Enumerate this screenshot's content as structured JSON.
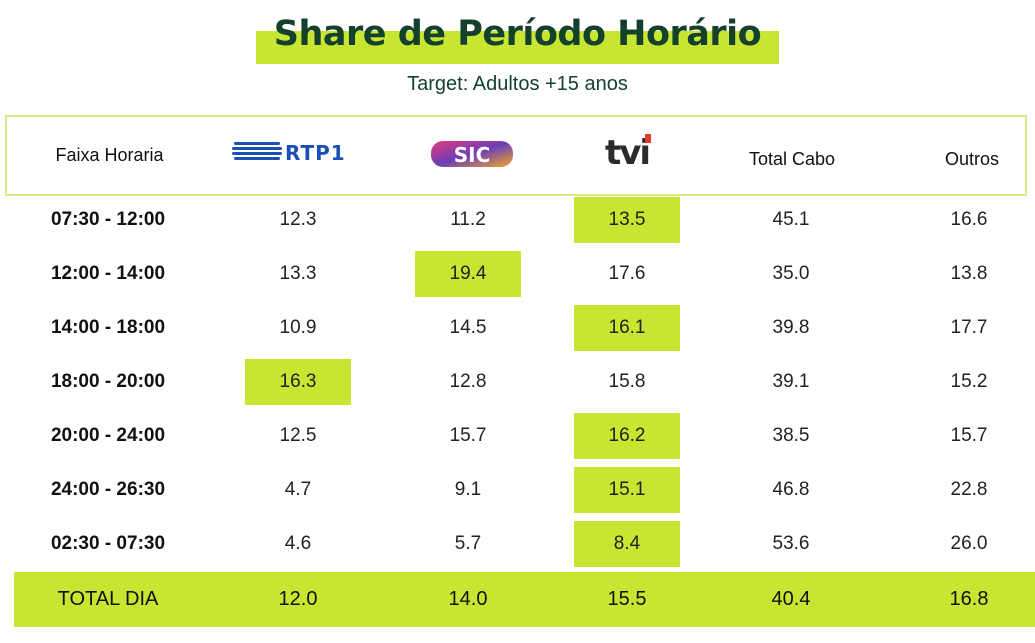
{
  "title": "Share de Período Horário",
  "subtitle": "Target: Adultos +15 anos",
  "header": {
    "col0": "Faixa Horaria",
    "rtp_logo": "RTP1",
    "sic_logo": "SIC",
    "tvi_logo": "tvi",
    "col4": "Total Cabo",
    "col5": "Outros"
  },
  "colors": {
    "highlight": "#c8e532",
    "title": "#14412d",
    "rtp": "#1a4fb8",
    "tvi": "#2b2b2b"
  },
  "rows": [
    {
      "time": "07:30 - 12:00",
      "rtp1": "12.3",
      "sic": "11.2",
      "tvi": "13.5",
      "cabo": "45.1",
      "outros": "16.6",
      "highlight": "tvi"
    },
    {
      "time": "12:00 - 14:00",
      "rtp1": "13.3",
      "sic": "19.4",
      "tvi": "17.6",
      "cabo": "35.0",
      "outros": "13.8",
      "highlight": "sic"
    },
    {
      "time": "14:00 - 18:00",
      "rtp1": "10.9",
      "sic": "14.5",
      "tvi": "16.1",
      "cabo": "39.8",
      "outros": "17.7",
      "highlight": "tvi"
    },
    {
      "time": "18:00 - 20:00",
      "rtp1": "16.3",
      "sic": "12.8",
      "tvi": "15.8",
      "cabo": "39.1",
      "outros": "15.2",
      "highlight": "rtp1"
    },
    {
      "time": "20:00 - 24:00",
      "rtp1": "12.5",
      "sic": "15.7",
      "tvi": "16.2",
      "cabo": "38.5",
      "outros": "15.7",
      "highlight": "tvi"
    },
    {
      "time": "24:00 - 26:30",
      "rtp1": "4.7",
      "sic": "9.1",
      "tvi": "15.1",
      "cabo": "46.8",
      "outros": "22.8",
      "highlight": "tvi"
    },
    {
      "time": "02:30 - 07:30",
      "rtp1": "4.6",
      "sic": "5.7",
      "tvi": "8.4",
      "cabo": "53.6",
      "outros": "26.0",
      "highlight": "tvi"
    }
  ],
  "total": {
    "label": "TOTAL DIA",
    "rtp1": "12.0",
    "sic": "14.0",
    "tvi": "15.5",
    "cabo": "40.4",
    "outros": "16.8"
  }
}
